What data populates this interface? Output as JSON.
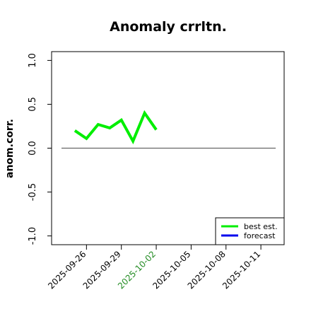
{
  "chart_data": {
    "type": "line",
    "title": "Anomaly crrltn.",
    "ylabel": "anom.corr.",
    "x": [
      "2025-09-25",
      "2025-09-26",
      "2025-09-27",
      "2025-09-28",
      "2025-09-29",
      "2025-09-30",
      "2025-10-01",
      "2025-10-02"
    ],
    "series": [
      {
        "name": "best est.",
        "color": "#00ee00",
        "values": [
          0.2,
          0.11,
          0.27,
          0.23,
          0.32,
          0.08,
          0.4,
          0.21
        ]
      },
      {
        "name": "forecast",
        "color": "#0000ee",
        "values": [
          null,
          null,
          null,
          null,
          null,
          null,
          null,
          null
        ]
      }
    ],
    "xlim": [
      "2025-09-23",
      "2025-10-13"
    ],
    "xticks": [
      "2025-09-26",
      "2025-09-29",
      "2025-10-02",
      "2025-10-05",
      "2025-10-08",
      "2025-10-11"
    ],
    "xtick_colors": [
      "#000000",
      "#000000",
      "#228b22",
      "#000000",
      "#000000",
      "#000000"
    ],
    "ylim": [
      -1.1,
      1.1
    ],
    "yticks": [
      {
        "value": -1,
        "label": "-1.0"
      },
      {
        "value": -0.5,
        "label": "-0.5"
      },
      {
        "value": 0,
        "label": "0.0"
      },
      {
        "value": 0.5,
        "label": "0.5"
      },
      {
        "value": 1,
        "label": "1.0"
      }
    ],
    "hline": 0,
    "hline_color": "#666666",
    "legend": "lower right"
  }
}
